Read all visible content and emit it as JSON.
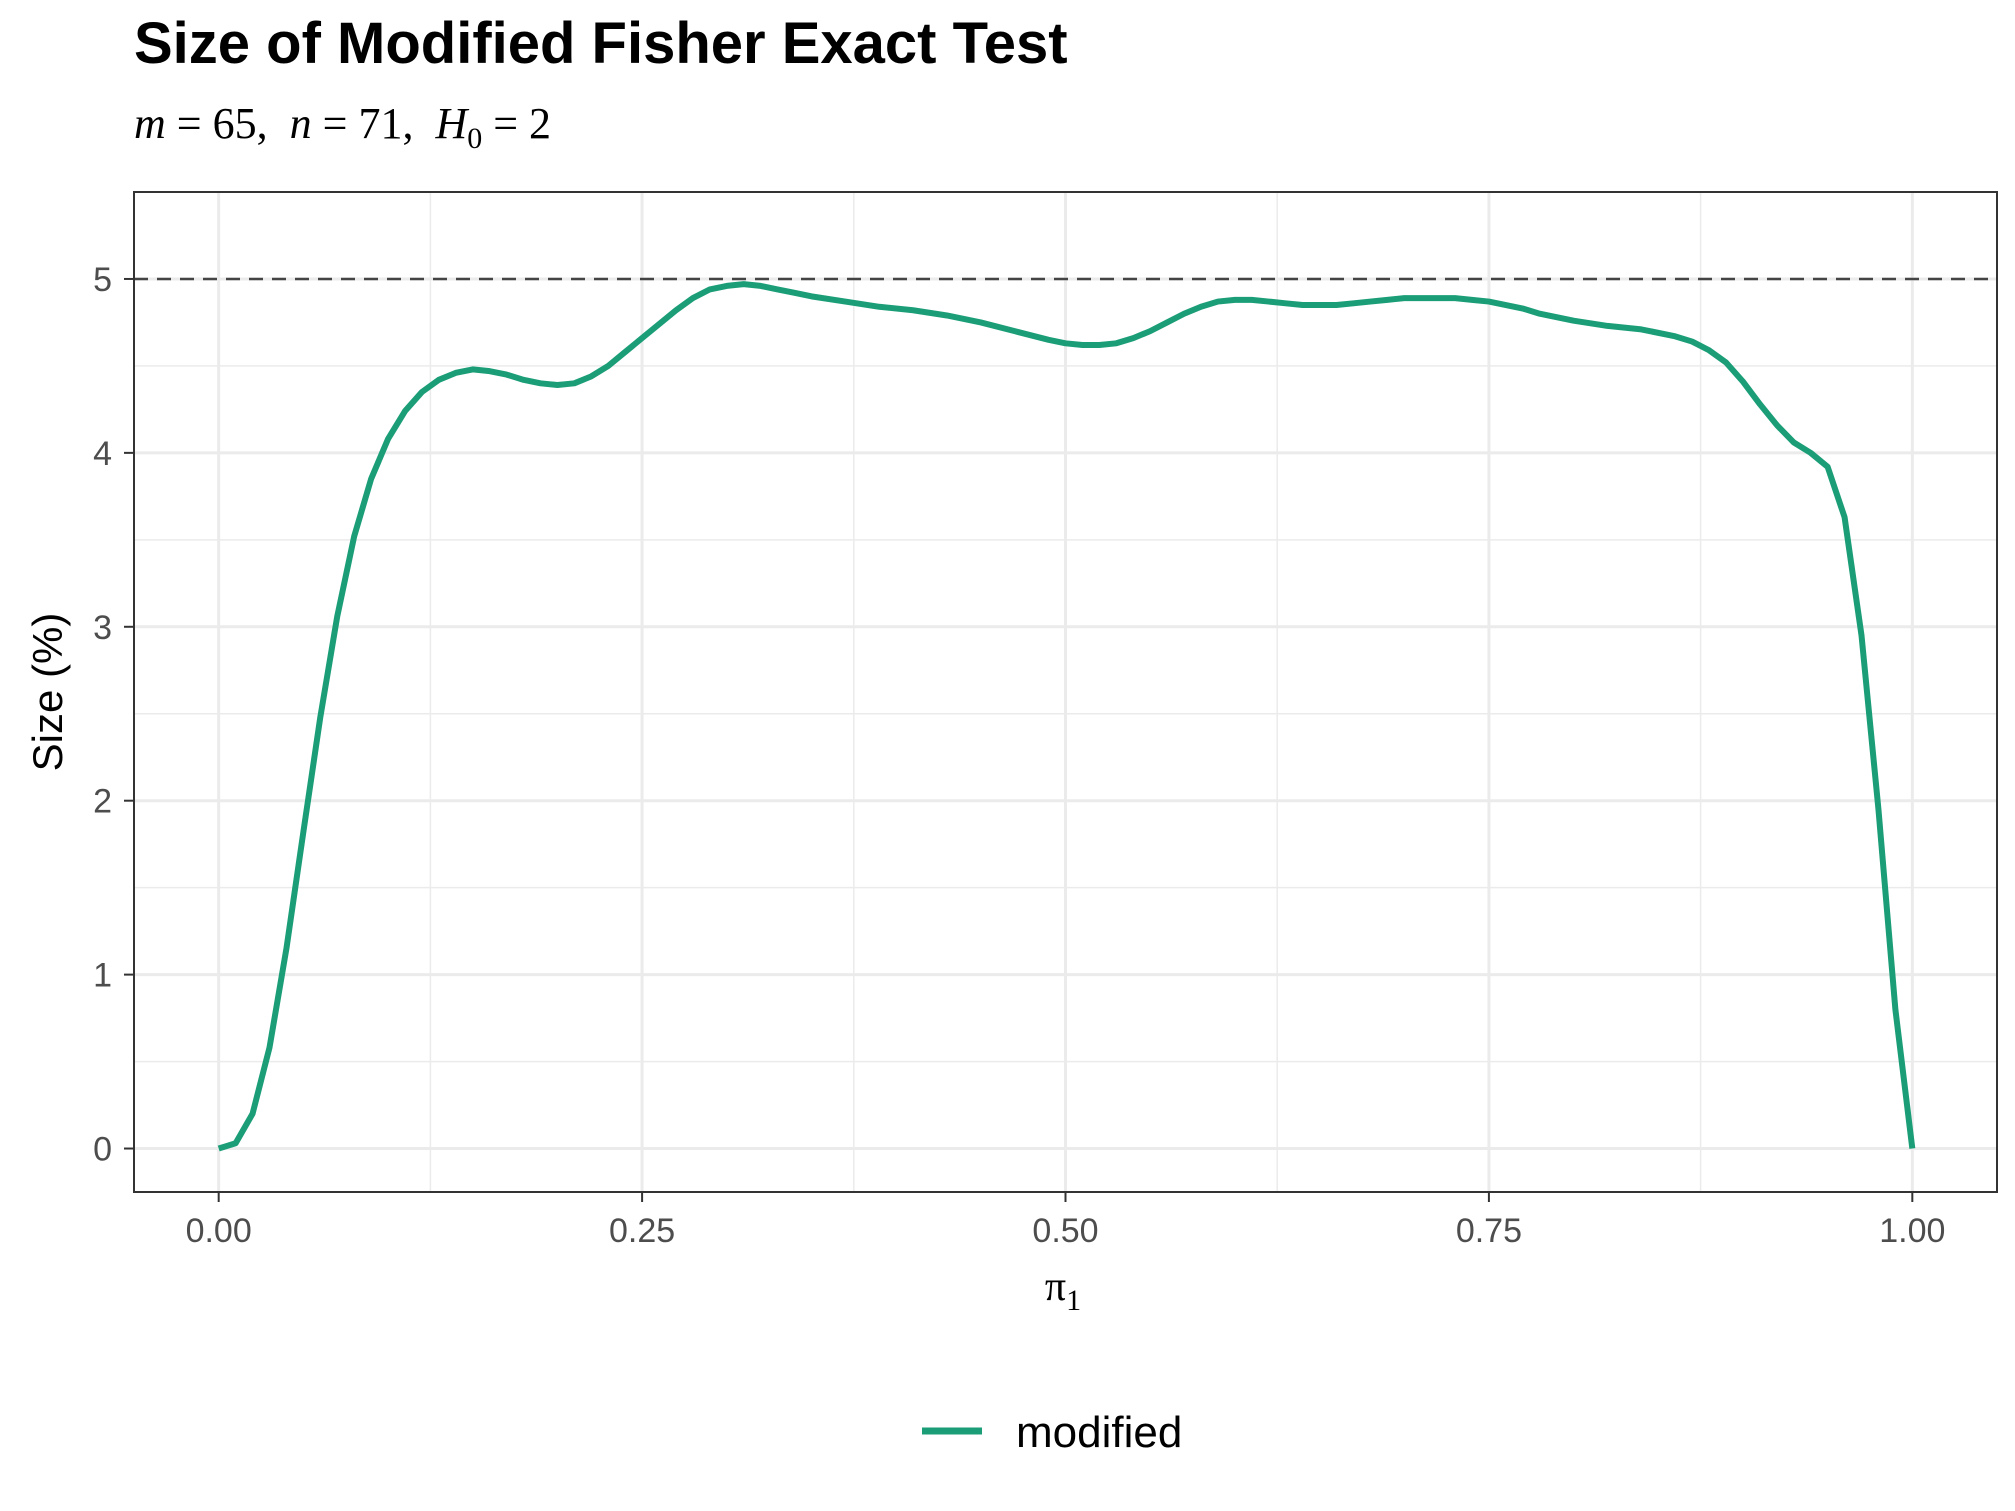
{
  "chart_data": {
    "type": "line",
    "title": "Size of Modified Fisher Exact Test",
    "subtitle": {
      "m_symbol": "m",
      "m_value": "65",
      "n_symbol": "n",
      "n_value": "71",
      "h_symbol": "H",
      "h_subscript": "0",
      "h_value": "2"
    },
    "xlabel": {
      "symbol": "π",
      "subscript": "1"
    },
    "ylabel": "Size (%)",
    "xlim": [
      -0.05,
      1.05
    ],
    "ylim": [
      -0.25,
      5.5
    ],
    "xticks": [
      0.0,
      0.25,
      0.5,
      0.75,
      1.0
    ],
    "xtick_labels": [
      "0.00",
      "0.25",
      "0.50",
      "0.75",
      "1.00"
    ],
    "yticks": [
      0,
      1,
      2,
      3,
      4,
      5
    ],
    "ytick_labels": [
      "0",
      "1",
      "2",
      "3",
      "4",
      "5"
    ],
    "reference_line": {
      "y": 5,
      "style": "dashed",
      "color": "#444444"
    },
    "grid": true,
    "legend_position": "bottom",
    "series": [
      {
        "name": "modified",
        "color": "#1b9e77",
        "x": [
          0.0,
          0.01,
          0.02,
          0.03,
          0.04,
          0.05,
          0.06,
          0.07,
          0.08,
          0.09,
          0.1,
          0.11,
          0.12,
          0.13,
          0.14,
          0.15,
          0.16,
          0.17,
          0.18,
          0.19,
          0.2,
          0.21,
          0.22,
          0.23,
          0.24,
          0.25,
          0.26,
          0.27,
          0.28,
          0.29,
          0.3,
          0.31,
          0.32,
          0.33,
          0.34,
          0.35,
          0.37,
          0.39,
          0.41,
          0.43,
          0.45,
          0.47,
          0.49,
          0.5,
          0.51,
          0.52,
          0.53,
          0.54,
          0.55,
          0.56,
          0.57,
          0.58,
          0.59,
          0.6,
          0.61,
          0.62,
          0.63,
          0.64,
          0.65,
          0.66,
          0.67,
          0.68,
          0.69,
          0.7,
          0.71,
          0.72,
          0.73,
          0.74,
          0.75,
          0.76,
          0.77,
          0.78,
          0.79,
          0.8,
          0.82,
          0.84,
          0.86,
          0.87,
          0.88,
          0.89,
          0.9,
          0.91,
          0.92,
          0.93,
          0.94,
          0.95,
          0.96,
          0.97,
          0.98,
          0.99,
          1.0
        ],
        "values": [
          0.0,
          0.03,
          0.2,
          0.58,
          1.15,
          1.82,
          2.48,
          3.06,
          3.52,
          3.85,
          4.08,
          4.24,
          4.35,
          4.42,
          4.46,
          4.48,
          4.47,
          4.45,
          4.42,
          4.4,
          4.39,
          4.4,
          4.44,
          4.5,
          4.58,
          4.66,
          4.74,
          4.82,
          4.89,
          4.94,
          4.96,
          4.97,
          4.96,
          4.94,
          4.92,
          4.9,
          4.87,
          4.84,
          4.82,
          4.79,
          4.75,
          4.7,
          4.65,
          4.63,
          4.62,
          4.62,
          4.63,
          4.66,
          4.7,
          4.75,
          4.8,
          4.84,
          4.87,
          4.88,
          4.88,
          4.87,
          4.86,
          4.85,
          4.85,
          4.85,
          4.86,
          4.87,
          4.88,
          4.89,
          4.89,
          4.89,
          4.89,
          4.88,
          4.87,
          4.85,
          4.83,
          4.8,
          4.78,
          4.76,
          4.73,
          4.71,
          4.67,
          4.64,
          4.59,
          4.52,
          4.41,
          4.28,
          4.16,
          4.06,
          4.0,
          3.92,
          3.63,
          2.95,
          1.95,
          0.8,
          0.0
        ]
      }
    ]
  }
}
